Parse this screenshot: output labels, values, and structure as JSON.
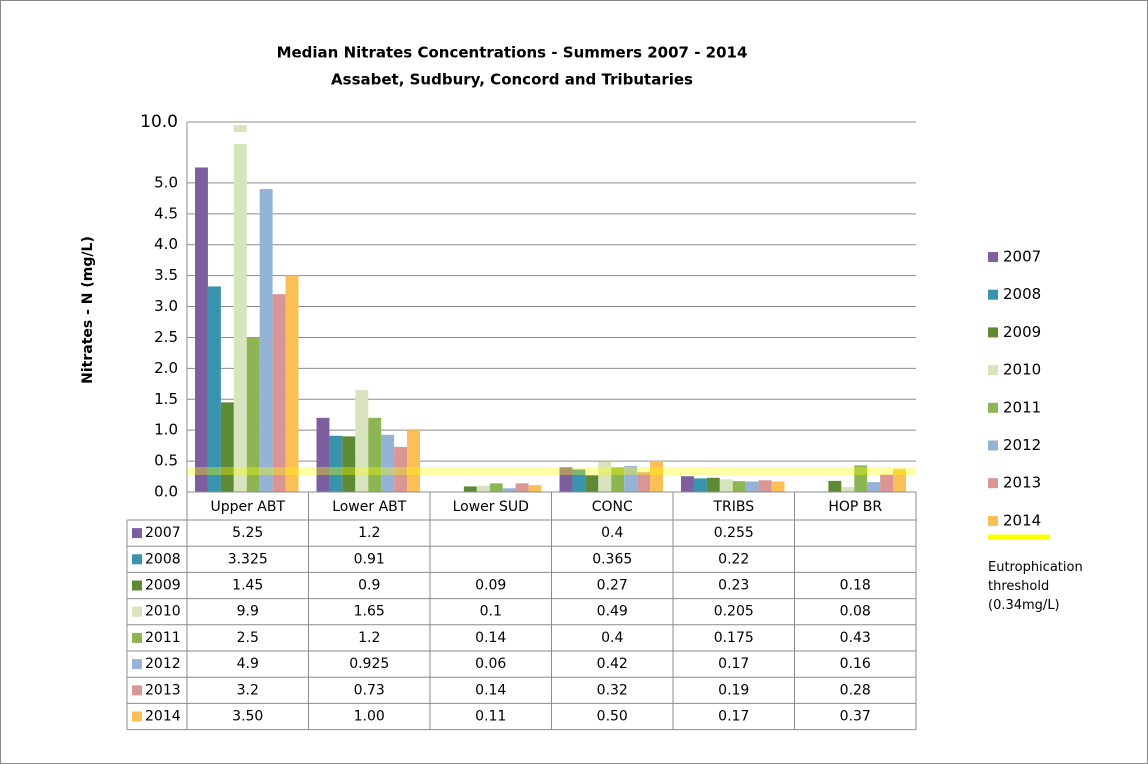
{
  "chart_data": {
    "type": "bar",
    "title": "Median Nitrates Concentrations  - Summers 2007 - 2014",
    "subtitle": "Assabet, Sudbury, Concord and Tributaries",
    "y_label": "Nitrates - N (mg/L)",
    "categories": [
      "Upper ABT",
      "Lower ABT",
      "Lower SUD",
      "CONC",
      "TRIBS",
      "HOP BR"
    ],
    "series": [
      {
        "name": "2007",
        "color": "#7d5fa0",
        "values": [
          5.25,
          1.2,
          null,
          0.4,
          0.255,
          null
        ]
      },
      {
        "name": "2008",
        "color": "#3a93ad",
        "values": [
          3.325,
          0.91,
          null,
          0.365,
          0.22,
          null
        ]
      },
      {
        "name": "2009",
        "color": "#5f8a35",
        "values": [
          1.45,
          0.9,
          0.09,
          0.27,
          0.23,
          0.18
        ]
      },
      {
        "name": "2010",
        "color": "#d7e4bd",
        "values": [
          9.9,
          1.65,
          0.1,
          0.49,
          0.205,
          0.08
        ]
      },
      {
        "name": "2011",
        "color": "#8db553",
        "values": [
          2.5,
          1.2,
          0.14,
          0.4,
          0.175,
          0.43
        ]
      },
      {
        "name": "2012",
        "color": "#95b3d7",
        "values": [
          4.9,
          0.925,
          0.06,
          0.42,
          0.17,
          0.16
        ]
      },
      {
        "name": "2013",
        "color": "#d99694",
        "values": [
          3.2,
          0.73,
          0.14,
          0.32,
          0.19,
          0.28
        ]
      },
      {
        "name": "2014",
        "color": "#fac057",
        "values": [
          3.5,
          1.0,
          0.11,
          0.5,
          0.17,
          0.37
        ],
        "value_labels": [
          "3.50",
          "1.00",
          "0.11",
          "0.50",
          "0.17",
          "0.37"
        ]
      }
    ],
    "ylim": [
      0,
      10
    ],
    "y_break": [
      5.5,
      9.5
    ],
    "yticks": [
      {
        "value": 0,
        "label": "0.0"
      },
      {
        "value": 0.5,
        "label": "0.5"
      },
      {
        "value": 1,
        "label": "1.0"
      },
      {
        "value": 1.5,
        "label": "1.5"
      },
      {
        "value": 2,
        "label": "2.0"
      },
      {
        "value": 2.5,
        "label": "2.5"
      },
      {
        "value": 3,
        "label": "3.0"
      },
      {
        "value": 3.5,
        "label": "3.5"
      },
      {
        "value": 4,
        "label": "4.0"
      },
      {
        "value": 4.5,
        "label": "4.5"
      },
      {
        "value": 5,
        "label": "5.0"
      },
      {
        "value": 10,
        "label": "10.0"
      }
    ],
    "grid": true,
    "legend": "right",
    "threshold": {
      "value": 0.34,
      "label": "Eutrophication threshold (0.34mg/L)",
      "color": "#ffff00"
    }
  }
}
